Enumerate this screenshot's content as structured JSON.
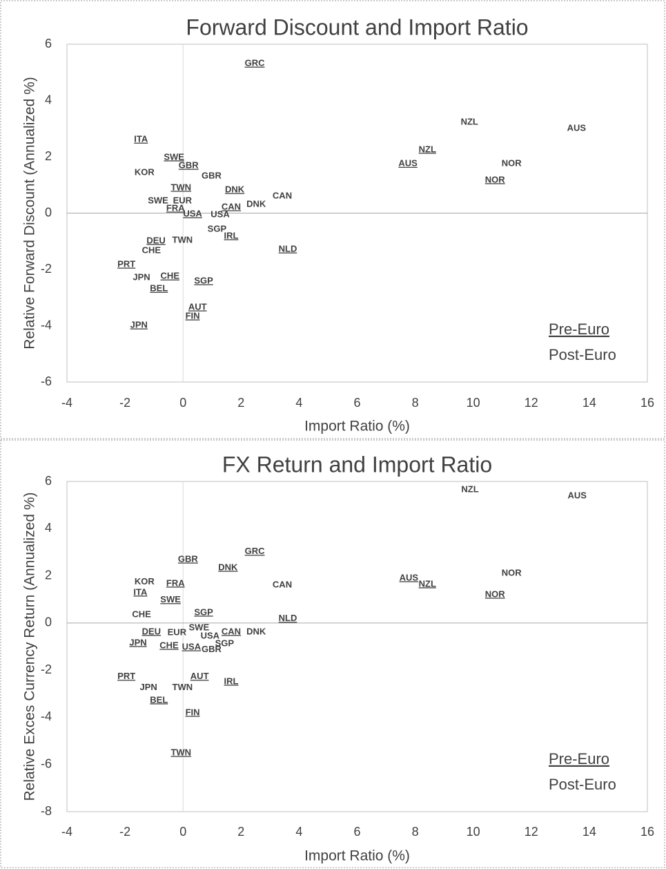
{
  "chart_data": [
    {
      "type": "scatter",
      "title": "Forward Discount and Import Ratio",
      "xlabel": "Import Ratio (%)",
      "ylabel": "Relative Forward Discount (Annualized %)",
      "xlim": [
        -4,
        16
      ],
      "xticks": [
        -4,
        -2,
        0,
        2,
        4,
        6,
        8,
        10,
        12,
        14,
        16
      ],
      "ylim": [
        -6,
        6
      ],
      "yticks": [
        -6,
        -4,
        -2,
        0,
        2,
        4,
        6
      ],
      "legend": "lower right",
      "series": [
        {
          "name": "Pre-Euro",
          "underline": true,
          "color": "#404040",
          "labels": [
            "GRC",
            "ITA",
            "SWE",
            "GBR",
            "TWN",
            "DNK",
            "FRA",
            "USA",
            "CAN",
            "IRL",
            "DEU",
            "PRT",
            "CHE",
            "BEL",
            "SGP",
            "AUT",
            "FIN",
            "JPN",
            "NLD",
            "AUS",
            "NZL",
            "NOR"
          ],
          "x": [
            2.47,
            -1.45,
            -0.31,
            0.19,
            -0.07,
            1.78,
            -0.26,
            0.33,
            1.66,
            1.66,
            -0.93,
            -1.95,
            -0.45,
            -0.83,
            0.71,
            0.5,
            0.33,
            -1.52,
            3.61,
            7.75,
            8.42,
            10.75
          ],
          "values": [
            5.31,
            2.61,
            1.98,
            1.68,
            0.9,
            0.82,
            0.16,
            -0.04,
            0.21,
            -0.82,
            -0.99,
            -1.83,
            -2.25,
            -2.69,
            -2.42,
            -3.35,
            -3.67,
            -3.99,
            -1.29,
            1.75,
            2.25,
            1.17
          ]
        },
        {
          "name": "Post-Euro",
          "underline": false,
          "color": "#404040",
          "labels": [
            "NZL",
            "AUS",
            "NOR",
            "KOR",
            "GBR",
            "CAN",
            "DNK",
            "SWE",
            "EUR",
            "USA",
            "SGP",
            "TWN",
            "CHE",
            "JPN"
          ],
          "x": [
            9.87,
            13.56,
            11.32,
            -1.33,
            0.98,
            3.42,
            2.52,
            -0.86,
            -0.02,
            1.28,
            1.17,
            -0.02,
            -1.09,
            -1.43
          ],
          "values": [
            3.23,
            3.01,
            1.75,
            1.44,
            1.31,
            0.6,
            0.31,
            0.43,
            0.43,
            -0.06,
            -0.58,
            -0.97,
            -1.34,
            -2.29
          ]
        }
      ]
    },
    {
      "type": "scatter",
      "title": "FX Return and Import Ratio",
      "xlabel": "Import Ratio (%)",
      "ylabel": "Relative Exces Currency Return (Annualized %)",
      "xlim": [
        -4,
        16
      ],
      "xticks": [
        -4,
        -2,
        0,
        2,
        4,
        6,
        8,
        10,
        12,
        14,
        16
      ],
      "ylim": [
        -8,
        6
      ],
      "yticks": [
        -8,
        -6,
        -4,
        -2,
        0,
        2,
        4,
        6
      ],
      "legend": "lower right",
      "series": [
        {
          "name": "Pre-Euro",
          "underline": true,
          "color": "#404040",
          "labels": [
            "GRC",
            "GBR",
            "DNK",
            "FRA",
            "ITA",
            "SWE",
            "SGP",
            "NLD",
            "DEU",
            "CAN",
            "JPN",
            "CHE",
            "USA",
            "PRT",
            "AUT",
            "IRL",
            "BEL",
            "FIN",
            "TWN",
            "AUS",
            "NZL",
            "NOR"
          ],
          "x": [
            2.47,
            0.17,
            1.55,
            -0.26,
            -1.47,
            -0.43,
            0.71,
            3.61,
            -1.09,
            1.66,
            -1.55,
            -0.48,
            0.29,
            -1.95,
            0.57,
            1.66,
            -0.83,
            0.33,
            -0.07,
            7.78,
            8.42,
            10.75
          ],
          "values": [
            3.02,
            2.69,
            2.34,
            1.67,
            1.29,
            0.97,
            0.44,
            0.18,
            -0.38,
            -0.38,
            -0.85,
            -0.97,
            -1.03,
            -2.28,
            -2.28,
            -2.49,
            -3.28,
            -3.81,
            -5.51,
            1.9,
            1.64,
            1.2
          ]
        },
        {
          "name": "Post-Euro",
          "underline": false,
          "color": "#404040",
          "labels": [
            "NZL",
            "AUS",
            "NOR",
            "KOR",
            "CAN",
            "CHE",
            "SWE",
            "EUR",
            "USA",
            "DNK",
            "SGP",
            "GBR",
            "JPN",
            "TWN"
          ],
          "x": [
            9.89,
            13.58,
            11.32,
            -1.33,
            3.42,
            -1.43,
            0.55,
            -0.21,
            0.93,
            2.52,
            1.43,
            0.98,
            -1.19,
            -0.02
          ],
          "values": [
            5.65,
            5.39,
            2.11,
            1.73,
            1.61,
            0.35,
            -0.21,
            -0.41,
            -0.56,
            -0.38,
            -0.88,
            -1.14,
            -2.75,
            -2.75
          ]
        }
      ]
    }
  ]
}
